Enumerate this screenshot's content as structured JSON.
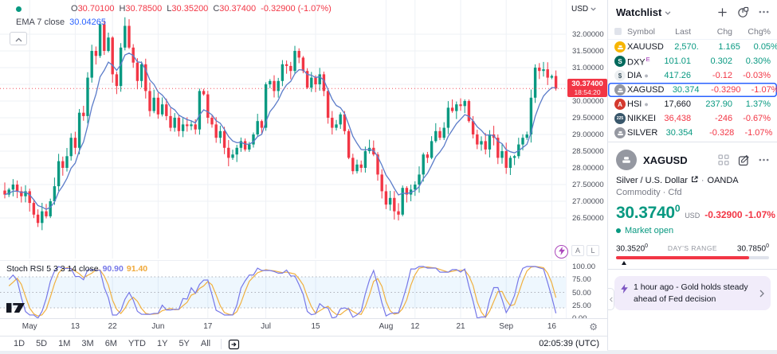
{
  "legend": {
    "labels": {
      "o": "O",
      "h": "H",
      "l": "L",
      "c": "C"
    },
    "values": {
      "o": "30.70100",
      "h": "30.78500",
      "l": "30.35200",
      "c": "30.37400"
    },
    "change": "-0.32900 (-1.07%)",
    "ema_label": "EMA 7 close",
    "ema_value": "30.04265"
  },
  "price_axis": {
    "currency": "USD",
    "ticks": [
      "32.00000",
      "31.50000",
      "31.00000",
      "30.50000",
      "30.00000",
      "29.50000",
      "29.00000",
      "28.50000",
      "28.00000",
      "27.50000",
      "27.00000",
      "26.50000"
    ],
    "last_price": "30.37400",
    "countdown": "18:54:20",
    "scale_buttons": [
      "A",
      "L"
    ]
  },
  "time_axis": {
    "labels": [
      {
        "text": "May",
        "i": 6
      },
      {
        "text": "13",
        "i": 17
      },
      {
        "text": "22",
        "i": 26
      },
      {
        "text": "Jun",
        "i": 37
      },
      {
        "text": "17",
        "i": 49
      },
      {
        "text": "Jul",
        "i": 63
      },
      {
        "text": "15",
        "i": 75
      },
      {
        "text": "Aug",
        "i": 92
      },
      {
        "text": "12",
        "i": 99
      },
      {
        "text": "21",
        "i": 110
      },
      {
        "text": "Sep",
        "i": 121
      },
      {
        "text": "16",
        "i": 132
      }
    ]
  },
  "indicator": {
    "title": "Stoch RSI 5 3 3 14 close",
    "k_value": "90.90",
    "d_value": "91.40",
    "ticks": [
      "100.00",
      "75.00",
      "50.00",
      "25.00",
      "0.00"
    ],
    "band": [
      20,
      80
    ]
  },
  "chart_data": {
    "type": "candlestick",
    "symbol": "XAGUSD",
    "timeframe": "1D",
    "visible_price_range": [
      26.5,
      32.0
    ],
    "last": {
      "open": 30.701,
      "high": 30.785,
      "low": 30.352,
      "close": 30.374,
      "change": -0.329,
      "change_pct": -1.07
    },
    "overlays": [
      {
        "type": "EMA",
        "period": 7,
        "value": 30.04265,
        "color": "#5b7cc9"
      }
    ],
    "lower_pane": {
      "type": "StochRSI",
      "params": [
        5,
        3,
        3,
        14
      ],
      "source": "close",
      "k": 90.9,
      "d": 91.4,
      "k_color": "#7678e8",
      "d_color": "#f0b03f",
      "band": [
        20,
        80
      ]
    },
    "closes": [
      27.2,
      27.35,
      27.5,
      27.3,
      27.15,
      27.3,
      26.95,
      26.6,
      26.35,
      26.7,
      26.55,
      27.0,
      27.45,
      28.2,
      28.0,
      28.35,
      28.9,
      28.6,
      29.65,
      29.55,
      30.7,
      31.5,
      31.35,
      32.3,
      31.5,
      31.9,
      30.8,
      30.45,
      31.6,
      32.25,
      31.6,
      31.15,
      30.6,
      31.1,
      30.3,
      29.7,
      30.1,
      29.6,
      29.9,
      29.55,
      29.2,
      29.5,
      29.1,
      29.3,
      29.25,
      29.3,
      29.15,
      30.3,
      30.2,
      29.5,
      29.3,
      28.9,
      29.1,
      28.6,
      28.3,
      28.4,
      28.6,
      28.8,
      28.55,
      28.7,
      29.0,
      29.4,
      29.2,
      30.5,
      30.6,
      30.3,
      30.6,
      31.1,
      31.05,
      30.9,
      31.5,
      31.3,
      30.9,
      30.4,
      30.7,
      30.5,
      30.8,
      30.3,
      29.5,
      29.2,
      29.3,
      29.6,
      29.1,
      28.3,
      27.9,
      28.1,
      28.0,
      28.5,
      28.6,
      28.4,
      27.8,
      27.3,
      26.9,
      27.1,
      26.7,
      26.6,
      27.4,
      27.2,
      27.35,
      27.5,
      27.8,
      28.4,
      28.3,
      28.8,
      29.1,
      28.9,
      29.2,
      29.8,
      29.7,
      29.9,
      29.85,
      30.0,
      29.4,
      29.0,
      28.7,
      28.8,
      28.55,
      29.0,
      28.9,
      28.3,
      28.5,
      28.0,
      28.3,
      28.35,
      28.7,
      28.9,
      29.0,
      30.1,
      31.0,
      30.9,
      30.95,
      30.7,
      30.75,
      30.374
    ]
  },
  "toolbar": {
    "ranges": [
      "1D",
      "5D",
      "1M",
      "3M",
      "6M",
      "YTD",
      "1Y",
      "5Y",
      "All"
    ],
    "clock": "02:05:39 (UTC)"
  },
  "watchlist": {
    "title": "Watchlist",
    "columns": [
      "Symbol",
      "Last",
      "Chg",
      "Chg%"
    ],
    "rows": [
      {
        "symbol": "XAUUSD",
        "icon": "metal",
        "icon_bg": "#f7b500",
        "last": "2,570.",
        "last_color": "up",
        "chg": "1.165",
        "chg_color": "up",
        "pct": "0.05%",
        "pct_color": "up"
      },
      {
        "symbol": "DXY",
        "sup": "E",
        "icon": "S",
        "icon_bg": "#00695c",
        "last": "101.01",
        "last_color": "up",
        "chg": "0.302",
        "chg_color": "up",
        "pct": "0.30%",
        "pct_color": "up"
      },
      {
        "symbol": "DIA",
        "dot": true,
        "icon": "$",
        "icon_bg": "#eceff1",
        "icon_fg": "#455a64",
        "last": "417.26",
        "last_color": "up",
        "chg": "-0.12",
        "chg_color": "down",
        "pct": "-0.03%",
        "pct_color": "down"
      },
      {
        "symbol": "XAGUSD",
        "selected": true,
        "icon": "metal",
        "icon_bg": "#9598a1",
        "last": "30.374",
        "last_color": "up",
        "chg": "-0.3290",
        "chg_color": "down",
        "pct": "-1.07%",
        "pct_color": "down"
      },
      {
        "symbol": "HSI",
        "dot": true,
        "icon": "A",
        "icon_bg": "#d43a2f",
        "last": "17,660",
        "last_color": "neutral",
        "chg": "237.90",
        "chg_color": "up",
        "pct": "1.37%",
        "pct_color": "up"
      },
      {
        "symbol": "NIKKEI",
        "icon": "225",
        "icon_bg": "#39576b",
        "last": "36,438",
        "last_color": "down",
        "chg": "-246",
        "chg_color": "down",
        "pct": "-0.67%",
        "pct_color": "down"
      },
      {
        "symbol": "SILVER",
        "icon": "metal",
        "icon_bg": "#9598a1",
        "last": "30.354",
        "last_color": "up",
        "chg": "-0.328",
        "chg_color": "down",
        "pct": "-1.07%",
        "pct_color": "down"
      }
    ]
  },
  "symbol_detail": {
    "symbol": "XAGUSD",
    "description": "Silver / U.S. Dollar",
    "exchange": "OANDA",
    "type_line": "Commodity · Cfd",
    "price": "30.3740",
    "price_sup": "0",
    "currency": "USD",
    "change": "-0.32900",
    "change_pct": "-1.07%",
    "market_status": "Market open",
    "range_low": "30.3520",
    "range_low_sup": "0",
    "range_label": "DAY'S RANGE",
    "range_high": "30.7850",
    "range_high_sup": "0",
    "range_fill_pct": 87,
    "range_marker_pct": 5
  },
  "news": {
    "text": "1 hour ago - Gold holds steady ahead of Fed decision"
  },
  "colors": {
    "up": "#089981",
    "down": "#f23645",
    "neutral": "#131722",
    "accent": "#2962ff"
  }
}
